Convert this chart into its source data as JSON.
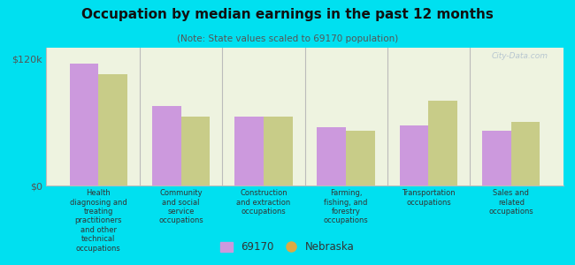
{
  "title": "Occupation by median earnings in the past 12 months",
  "subtitle": "(Note: State values scaled to 69170 population)",
  "categories": [
    "Health\ndiagnosing and\ntreating\npractitioners\nand other\ntechnical\noccupations",
    "Community\nand social\nservice\noccupations",
    "Construction\nand extraction\noccupations",
    "Farming,\nfishing, and\nforestry\noccupations",
    "Transportation\noccupations",
    "Sales and\nrelated\noccupations"
  ],
  "values_69170": [
    115000,
    75000,
    65000,
    55000,
    57000,
    52000
  ],
  "values_nebraska": [
    105000,
    65000,
    65000,
    52000,
    80000,
    60000
  ],
  "color_69170": "#cc99dd",
  "color_nebraska": "#c8cc88",
  "ylim": [
    0,
    130000
  ],
  "yticks": [
    0,
    120000
  ],
  "ytick_labels": [
    "$0",
    "$120k"
  ],
  "legend_label_69170": "69170",
  "legend_label_nebraska": "Nebraska",
  "background_color": "#00e0f0",
  "plot_bg_color": "#eef3e0",
  "watermark": "City-Data.com",
  "bar_width": 0.35
}
